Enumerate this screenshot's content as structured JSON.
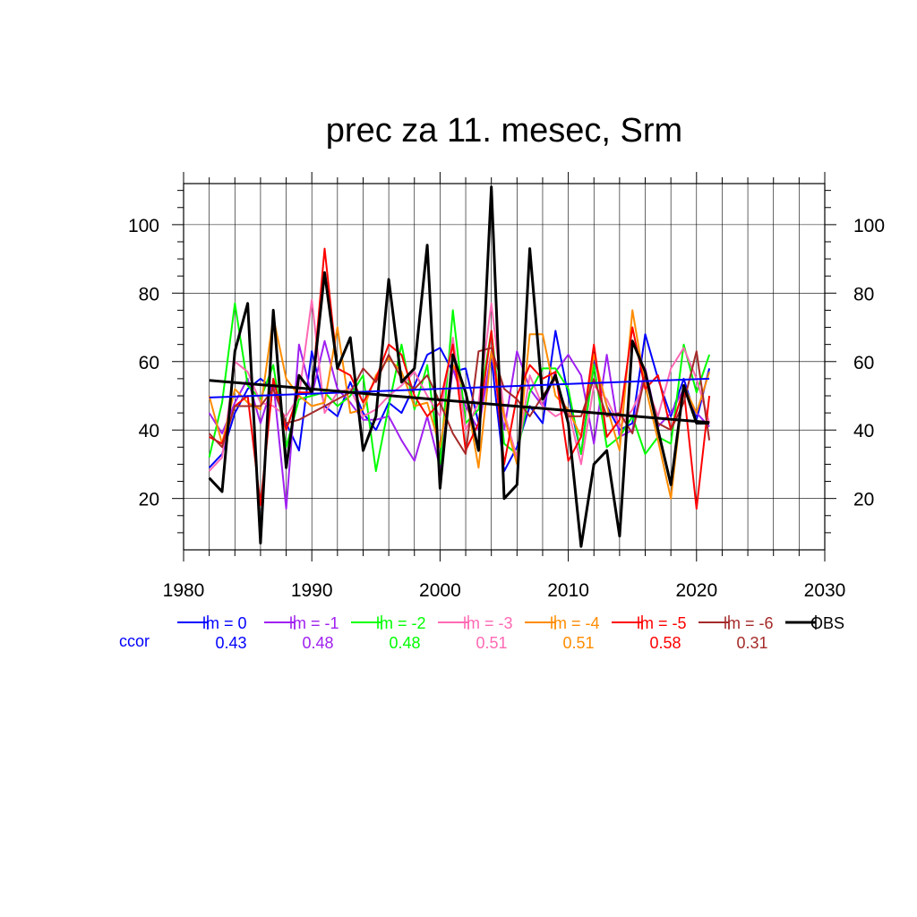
{
  "chart_data": {
    "type": "line",
    "title": "prec za 11. mesec, Srm",
    "xlabel": "",
    "ylabel": "",
    "xlim": [
      1980,
      2030
    ],
    "ylim": [
      5,
      112
    ],
    "x_ticks": [
      1980,
      1990,
      2000,
      2010,
      2020,
      2030
    ],
    "y_ticks": [
      20,
      40,
      60,
      80,
      100
    ],
    "grid": true,
    "legend_position": "bottom",
    "ccor_label": "ccor",
    "ccor_color": "#0000ff",
    "x": [
      1982,
      1983,
      1984,
      1985,
      1986,
      1987,
      1988,
      1989,
      1990,
      1991,
      1992,
      1993,
      1994,
      1995,
      1996,
      1997,
      1998,
      1999,
      2000,
      2001,
      2002,
      2003,
      2004,
      2005,
      2006,
      2007,
      2008,
      2009,
      2010,
      2011,
      2012,
      2013,
      2014,
      2015,
      2016,
      2017,
      2018,
      2019,
      2020,
      2021
    ],
    "series": [
      {
        "name": "lm = 0",
        "color": "#0000ff",
        "width": 2,
        "ccor": "0.43",
        "values": [
          29,
          33,
          45,
          52,
          55,
          52,
          42,
          34,
          63,
          47,
          44,
          54,
          45,
          40,
          48,
          45,
          53,
          62,
          64,
          57,
          58,
          42,
          61,
          28,
          35,
          47,
          42,
          69,
          50,
          33,
          61,
          47,
          40,
          42,
          68,
          55,
          44,
          55,
          43,
          58
        ]
      },
      {
        "name": "lm = -1",
        "color": "#a020f0",
        "width": 2,
        "ccor": "0.48",
        "values": [
          45,
          39,
          48,
          55,
          42,
          54,
          17,
          65,
          50,
          66,
          52,
          48,
          43,
          43,
          44,
          37,
          31,
          44,
          29,
          58,
          47,
          40,
          63,
          40,
          63,
          52,
          47,
          57,
          62,
          56,
          36,
          62,
          38,
          40,
          58,
          41,
          45,
          52,
          45,
          41
        ]
      },
      {
        "name": "lm = -2",
        "color": "#00ff00",
        "width": 2,
        "ccor": "0.48",
        "values": [
          32,
          48,
          77,
          53,
          49,
          59,
          35,
          49,
          50,
          51,
          47,
          50,
          56,
          28,
          47,
          65,
          46,
          59,
          30,
          75,
          42,
          46,
          69,
          36,
          33,
          51,
          58,
          58,
          52,
          33,
          59,
          35,
          38,
          44,
          33,
          38,
          36,
          65,
          51,
          62
        ]
      },
      {
        "name": "lm = -3",
        "color": "#ff69b4",
        "width": 2,
        "ccor": "0.51",
        "values": [
          28,
          32,
          60,
          57,
          48,
          47,
          44,
          50,
          78,
          45,
          51,
          52,
          44,
          46,
          50,
          53,
          57,
          50,
          44,
          67,
          40,
          48,
          77,
          45,
          32,
          56,
          47,
          44,
          46,
          30,
          53,
          49,
          41,
          46,
          54,
          44,
          58,
          64,
          55,
          42
        ]
      },
      {
        "name": "lm = -4",
        "color": "#ff8c00",
        "width": 2,
        "ccor": "0.51",
        "values": [
          50,
          36,
          52,
          48,
          46,
          73,
          55,
          50,
          47,
          48,
          70,
          45,
          46,
          56,
          61,
          57,
          47,
          48,
          35,
          59,
          51,
          29,
          63,
          44,
          30,
          68,
          68,
          50,
          46,
          38,
          62,
          47,
          34,
          75,
          53,
          37,
          20,
          53,
          45,
          57
        ]
      },
      {
        "name": "lm = -5",
        "color": "#ff0000",
        "width": 2,
        "ccor": "0.58",
        "values": [
          38,
          36,
          47,
          50,
          18,
          55,
          40,
          51,
          51,
          93,
          58,
          56,
          48,
          55,
          65,
          62,
          50,
          44,
          48,
          65,
          34,
          42,
          69,
          30,
          50,
          59,
          55,
          57,
          31,
          38,
          65,
          38,
          43,
          70,
          52,
          56,
          40,
          52,
          17,
          50
        ]
      },
      {
        "name": "lm = -6",
        "color": "#a52a2a",
        "width": 2,
        "ccor": "0.31",
        "values": [
          39,
          35,
          47,
          47,
          47,
          52,
          42,
          43,
          45,
          47,
          49,
          51,
          58,
          54,
          62,
          55,
          52,
          56,
          48,
          39,
          33,
          63,
          64,
          52,
          49,
          44,
          50,
          55,
          44,
          44,
          55,
          44,
          45,
          39,
          56,
          42,
          40,
          48,
          63,
          37
        ]
      },
      {
        "name": "OBS",
        "color": "#000000",
        "width": 3,
        "ccor": "",
        "values": [
          26,
          22,
          63,
          77,
          7,
          75,
          29,
          56,
          51,
          86,
          58,
          67,
          34,
          44,
          84,
          54,
          58,
          94,
          23,
          62,
          51,
          34,
          111,
          20,
          24,
          93,
          49,
          56,
          42,
          6,
          30,
          34,
          9,
          66,
          57,
          40,
          24,
          53,
          42,
          42
        ]
      }
    ],
    "trend_lines": [
      {
        "series": "lm = 0",
        "color": "#0000ff",
        "width": 2,
        "x": [
          1982,
          2021
        ],
        "y": [
          49.5,
          55.0
        ]
      },
      {
        "series": "OBS",
        "color": "#000000",
        "width": 3,
        "x": [
          1982,
          2021
        ],
        "y": [
          54.5,
          42.2
        ]
      }
    ]
  }
}
